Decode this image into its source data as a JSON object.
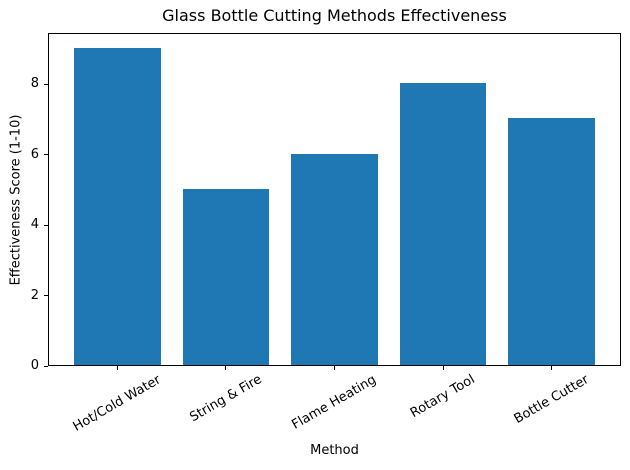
{
  "figure": {
    "background": "#ffffff"
  },
  "chart_data": {
    "type": "bar",
    "title": "Glass Bottle Cutting Methods Effectiveness",
    "xlabel": "Method",
    "ylabel": "Effectiveness Score (1-10)",
    "categories": [
      "Hot/Cold Water",
      "String & Fire",
      "Flame Heating",
      "Rotary Tool",
      "Bottle Cutter"
    ],
    "values": [
      9,
      5,
      6,
      8,
      7
    ],
    "yticks": [
      0,
      2,
      4,
      6,
      8
    ],
    "ylim": [
      0,
      9.45
    ],
    "bar_color": "#1f77b4",
    "axis_color": "#000000",
    "text_color": "#000000",
    "bar_width_fraction": 0.8,
    "x_tick_label_rotation_deg": 30,
    "grid": false,
    "legend": "none"
  }
}
